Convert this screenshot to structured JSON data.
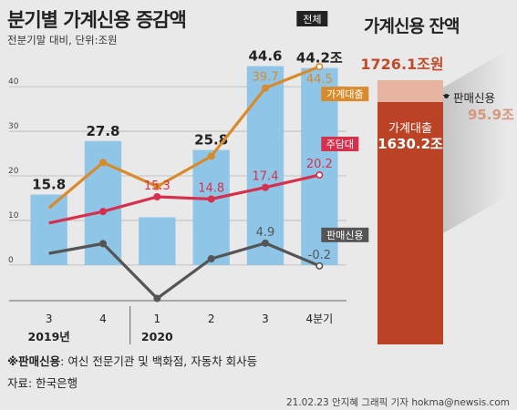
{
  "title": "분기별 가계신용 증감액",
  "subtitle": "전분기말 대비, 단위:조원",
  "chart_data": {
    "type": "bar",
    "categories": [
      "3",
      "4",
      "1",
      "2",
      "3",
      "4분기"
    ],
    "year_labels": [
      "2019년",
      "2020"
    ],
    "yticks": [
      0,
      10,
      20,
      30,
      40
    ],
    "ylim": [
      -8,
      48
    ],
    "grid": true,
    "series": [
      {
        "name": "전체",
        "type": "bar",
        "values": [
          15.8,
          27.8,
          10.7,
          25.8,
          44.6,
          44.2
        ],
        "labels": [
          "15.8",
          "27.8",
          "",
          "25.8",
          "44.6",
          "44.2조"
        ],
        "color": "#8fc6e8"
      },
      {
        "name": "가계대출",
        "type": "line",
        "values": [
          12.8,
          23.0,
          17.6,
          24.4,
          39.7,
          44.5
        ],
        "labels": [
          "",
          "",
          "",
          "",
          "39.7",
          "44.5"
        ],
        "color": "#d98a2b"
      },
      {
        "name": "주담대",
        "type": "line",
        "values": [
          9.4,
          12.0,
          15.3,
          14.8,
          17.4,
          20.2
        ],
        "labels": [
          "",
          "",
          "15.3",
          "14.8",
          "17.4",
          "20.2"
        ],
        "color": "#d6304c"
      },
      {
        "name": "판매신용",
        "type": "line",
        "values": [
          2.6,
          4.8,
          -7.5,
          1.4,
          4.9,
          -0.2
        ],
        "labels": [
          "",
          "",
          "",
          "",
          "4.9",
          "-0.2"
        ],
        "color": "#555555"
      }
    ]
  },
  "balance": {
    "title": "가계신용 잔액",
    "total": "1726.1조원",
    "household_label": "가계대출",
    "household_value": "1630.2조",
    "sales_label": "판매신용",
    "sales_value": "95.9조",
    "colors": {
      "household": "#bb4224",
      "sales": "#e7b4a1"
    }
  },
  "note_bold": "※판매신용",
  "note_rest": ": 여신 전문기관 및 백화점, 자동차 회사등",
  "source": "자료: 한국은행",
  "credit": "21.02.23 안지혜 그래픽 기자 hokma@newsis.com"
}
